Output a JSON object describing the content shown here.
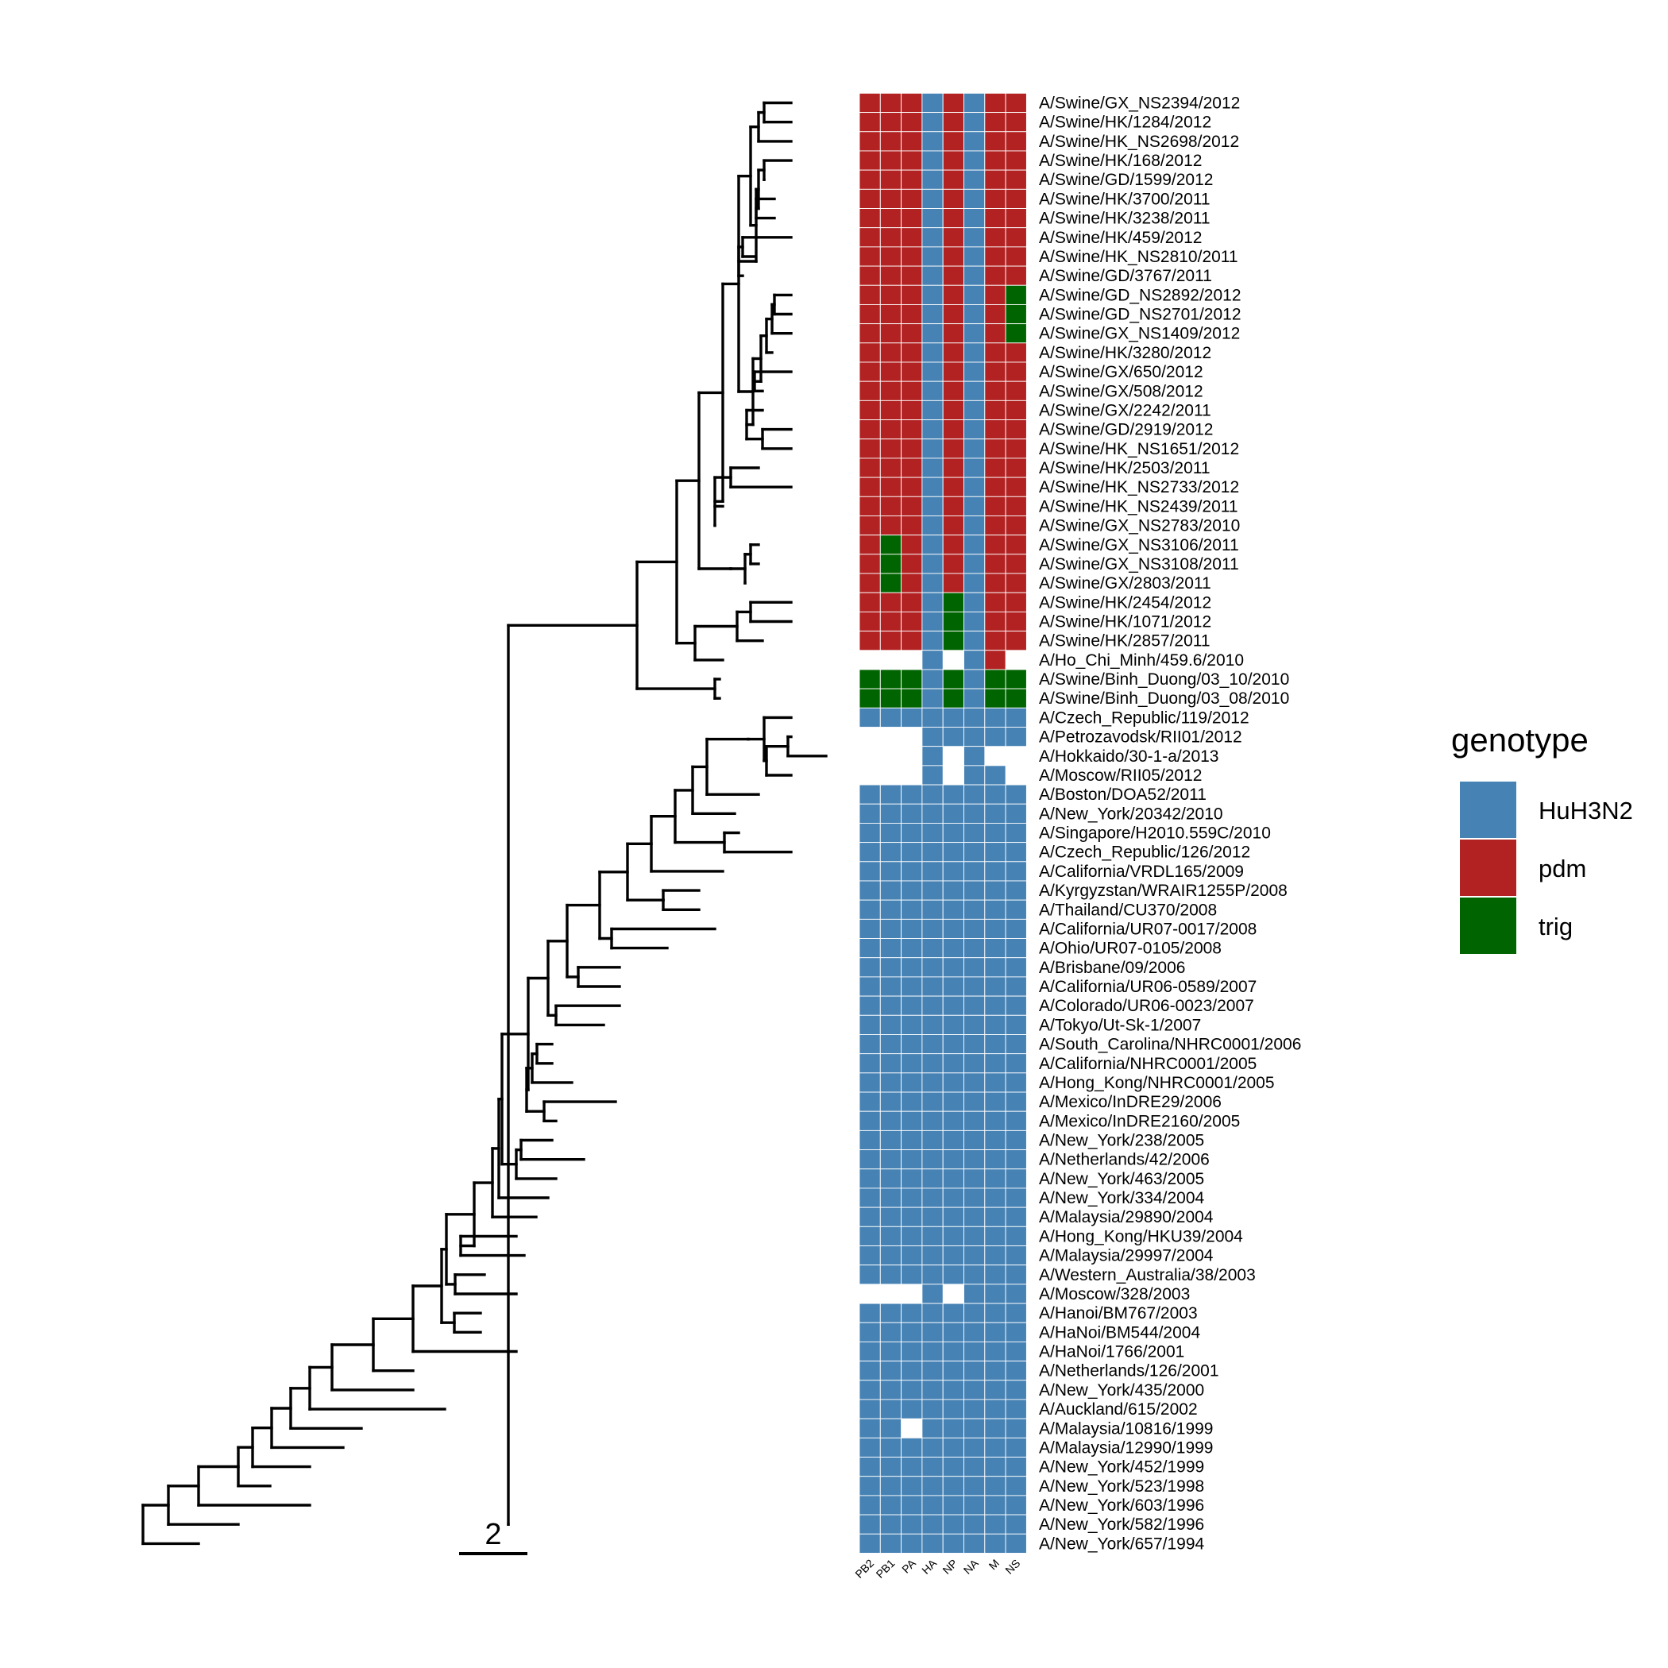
{
  "chart_data": {
    "type": "heatmap",
    "title": "",
    "segments": [
      "PB2",
      "PB1",
      "PA",
      "HA",
      "NP",
      "NA",
      "M",
      "NS"
    ],
    "legend": {
      "title": "genotype",
      "placement": "right",
      "entries": [
        {
          "name": "HuH3N2",
          "color": "#4682B4"
        },
        {
          "name": "pdm",
          "color": "#B22222"
        },
        {
          "name": "trig",
          "color": "#006400"
        }
      ]
    },
    "scale_bar": {
      "label": "2",
      "value": 2
    },
    "code_key": {
      "H": "HuH3N2",
      "P": "pdm",
      "T": "trig",
      "-": "missing"
    },
    "strains": [
      {
        "name": "A/Swine/GX_NS2394/2012",
        "genotype": "PPPHPHPP"
      },
      {
        "name": "A/Swine/HK/1284/2012",
        "genotype": "PPPHPHPP"
      },
      {
        "name": "A/Swine/HK_NS2698/2012",
        "genotype": "PPPHPHPP"
      },
      {
        "name": "A/Swine/HK/168/2012",
        "genotype": "PPPHPHPP"
      },
      {
        "name": "A/Swine/GD/1599/2012",
        "genotype": "PPPHPHPP"
      },
      {
        "name": "A/Swine/HK/3700/2011",
        "genotype": "PPPHPHPP"
      },
      {
        "name": "A/Swine/HK/3238/2011",
        "genotype": "PPPHPHPP"
      },
      {
        "name": "A/Swine/HK/459/2012",
        "genotype": "PPPHPHPP"
      },
      {
        "name": "A/Swine/HK_NS2810/2011",
        "genotype": "PPPHPHPP"
      },
      {
        "name": "A/Swine/GD/3767/2011",
        "genotype": "PPPHPHPP"
      },
      {
        "name": "A/Swine/GD_NS2892/2012",
        "genotype": "PPPHPHPT"
      },
      {
        "name": "A/Swine/GD_NS2701/2012",
        "genotype": "PPPHPHPT"
      },
      {
        "name": "A/Swine/GX_NS1409/2012",
        "genotype": "PPPHPHPT"
      },
      {
        "name": "A/Swine/HK/3280/2012",
        "genotype": "PPPHPHPP"
      },
      {
        "name": "A/Swine/GX/650/2012",
        "genotype": "PPPHPHPP"
      },
      {
        "name": "A/Swine/GX/508/2012",
        "genotype": "PPPHPHPP"
      },
      {
        "name": "A/Swine/GX/2242/2011",
        "genotype": "PPPHPHPP"
      },
      {
        "name": "A/Swine/GD/2919/2012",
        "genotype": "PPPHPHPP"
      },
      {
        "name": "A/Swine/HK_NS1651/2012",
        "genotype": "PPPHPHPP"
      },
      {
        "name": "A/Swine/HK/2503/2011",
        "genotype": "PPPHPHPP"
      },
      {
        "name": "A/Swine/HK_NS2733/2012",
        "genotype": "PPPHPHPP"
      },
      {
        "name": "A/Swine/HK_NS2439/2011",
        "genotype": "PPPHPHPP"
      },
      {
        "name": "A/Swine/GX_NS2783/2010",
        "genotype": "PPPHPHPP"
      },
      {
        "name": "A/Swine/GX_NS3106/2011",
        "genotype": "PTPHPHPP"
      },
      {
        "name": "A/Swine/GX_NS3108/2011",
        "genotype": "PTPHPHPP"
      },
      {
        "name": "A/Swine/GX/2803/2011",
        "genotype": "PTPHPHPP"
      },
      {
        "name": "A/Swine/HK/2454/2012",
        "genotype": "PPPHTHPP"
      },
      {
        "name": "A/Swine/HK/1071/2012",
        "genotype": "PPPHTHPP"
      },
      {
        "name": "A/Swine/HK/2857/2011",
        "genotype": "PPPHTHPP"
      },
      {
        "name": "A/Ho_Chi_Minh/459.6/2010",
        "genotype": "---H-HP-"
      },
      {
        "name": "A/Swine/Binh_Duong/03_10/2010",
        "genotype": "TTTHTHTT"
      },
      {
        "name": "A/Swine/Binh_Duong/03_08/2010",
        "genotype": "TTTHTHTT"
      },
      {
        "name": "A/Czech_Republic/119/2012",
        "genotype": "HHHHHHHH"
      },
      {
        "name": "A/Petrozavodsk/RII01/2012",
        "genotype": "---HHHHH"
      },
      {
        "name": "A/Hokkaido/30-1-a/2013",
        "genotype": "---H-H--"
      },
      {
        "name": "A/Moscow/RII05/2012",
        "genotype": "---H-HH-"
      },
      {
        "name": "A/Boston/DOA52/2011",
        "genotype": "HHHHHHHH"
      },
      {
        "name": "A/New_York/20342/2010",
        "genotype": "HHHHHHHH"
      },
      {
        "name": "A/Singapore/H2010.559C/2010",
        "genotype": "HHHHHHHH"
      },
      {
        "name": "A/Czech_Republic/126/2012",
        "genotype": "HHHHHHHH"
      },
      {
        "name": "A/California/VRDL165/2009",
        "genotype": "HHHHHHHH"
      },
      {
        "name": "A/Kyrgyzstan/WRAIR1255P/2008",
        "genotype": "HHHHHHHH"
      },
      {
        "name": "A/Thailand/CU370/2008",
        "genotype": "HHHHHHHH"
      },
      {
        "name": "A/California/UR07-0017/2008",
        "genotype": "HHHHHHHH"
      },
      {
        "name": "A/Ohio/UR07-0105/2008",
        "genotype": "HHHHHHHH"
      },
      {
        "name": "A/Brisbane/09/2006",
        "genotype": "HHHHHHHH"
      },
      {
        "name": "A/California/UR06-0589/2007",
        "genotype": "HHHHHHHH"
      },
      {
        "name": "A/Colorado/UR06-0023/2007",
        "genotype": "HHHHHHHH"
      },
      {
        "name": "A/Tokyo/Ut-Sk-1/2007",
        "genotype": "HHHHHHHH"
      },
      {
        "name": "A/South_Carolina/NHRC0001/2006",
        "genotype": "HHHHHHHH"
      },
      {
        "name": "A/California/NHRC0001/2005",
        "genotype": "HHHHHHHH"
      },
      {
        "name": "A/Hong_Kong/NHRC0001/2005",
        "genotype": "HHHHHHHH"
      },
      {
        "name": "A/Mexico/InDRE29/2006",
        "genotype": "HHHHHHHH"
      },
      {
        "name": "A/Mexico/InDRE2160/2005",
        "genotype": "HHHHHHHH"
      },
      {
        "name": "A/New_York/238/2005",
        "genotype": "HHHHHHHH"
      },
      {
        "name": "A/Netherlands/42/2006",
        "genotype": "HHHHHHHH"
      },
      {
        "name": "A/New_York/463/2005",
        "genotype": "HHHHHHHH"
      },
      {
        "name": "A/New_York/334/2004",
        "genotype": "HHHHHHHH"
      },
      {
        "name": "A/Malaysia/29890/2004",
        "genotype": "HHHHHHHH"
      },
      {
        "name": "A/Hong_Kong/HKU39/2004",
        "genotype": "HHHHHHHH"
      },
      {
        "name": "A/Malaysia/29997/2004",
        "genotype": "HHHHHHHH"
      },
      {
        "name": "A/Western_Australia/38/2003",
        "genotype": "HHHHHHHH"
      },
      {
        "name": "A/Moscow/328/2003",
        "genotype": "---H-HHH"
      },
      {
        "name": "A/Hanoi/BM767/2003",
        "genotype": "HHHHHHHH"
      },
      {
        "name": "A/HaNoi/BM544/2004",
        "genotype": "HHHHHHHH"
      },
      {
        "name": "A/HaNoi/1766/2001",
        "genotype": "HHHHHHHH"
      },
      {
        "name": "A/Netherlands/126/2001",
        "genotype": "HHHHHHHH"
      },
      {
        "name": "A/New_York/435/2000",
        "genotype": "HHHHHHHH"
      },
      {
        "name": "A/Auckland/615/2002",
        "genotype": "HHHHHHHH"
      },
      {
        "name": "A/Malaysia/10816/1999",
        "genotype": "HH-HHHHH"
      },
      {
        "name": "A/Malaysia/12990/1999",
        "genotype": "HHHHHHHH"
      },
      {
        "name": "A/New_York/452/1999",
        "genotype": "HHHHHHHH"
      },
      {
        "name": "A/New_York/523/1998",
        "genotype": "HHHHHHHH"
      },
      {
        "name": "A/New_York/603/1996",
        "genotype": "HHHHHHHH"
      },
      {
        "name": "A/New_York/582/1996",
        "genotype": "HHHHHHHH"
      },
      {
        "name": "A/New_York/657/1994",
        "genotype": "HHHHHHHH"
      }
    ]
  }
}
